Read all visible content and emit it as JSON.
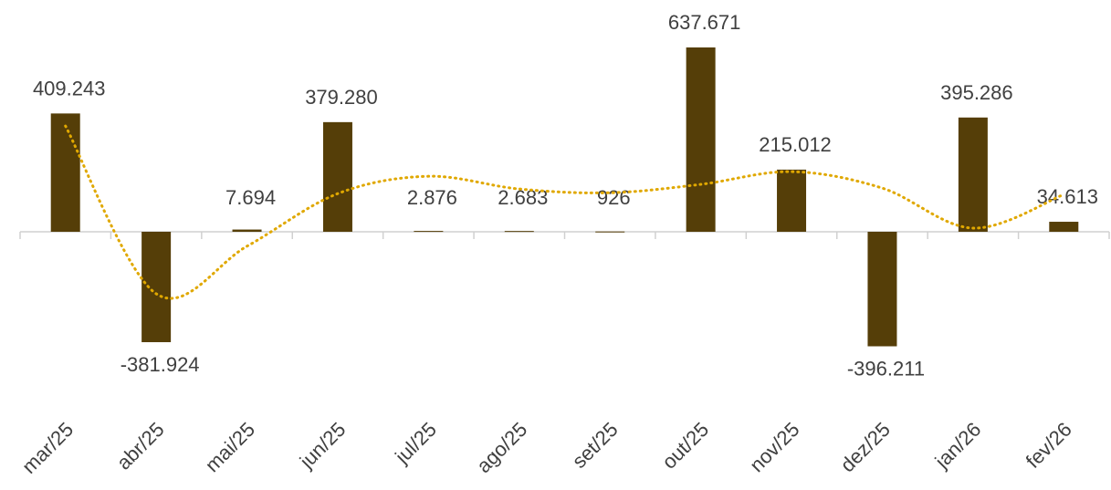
{
  "chart_data": {
    "type": "bar",
    "categories": [
      "mar/25",
      "abr/25",
      "mai/25",
      "jun/25",
      "jul/25",
      "ago/25",
      "set/25",
      "out/25",
      "nov/25",
      "dez/25",
      "jan/26",
      "fev/26"
    ],
    "values": [
      409243,
      -381924,
      7694,
      379280,
      2876,
      2683,
      926,
      637671,
      215012,
      -396211,
      395286,
      34613
    ],
    "value_labels": [
      "409.243",
      "-381.924",
      "7.694",
      "379.280",
      "2.876",
      "2.683",
      "926",
      "637.671",
      "215.012",
      "-396.211",
      "395.286",
      "34.613"
    ],
    "color": "#553e08",
    "trendline": {
      "color": "#e0a800",
      "values": [
        366000,
        -214500,
        -50000,
        132000,
        192000,
        148000,
        135000,
        164000,
        208000,
        151000,
        12600,
        129000
      ]
    }
  }
}
